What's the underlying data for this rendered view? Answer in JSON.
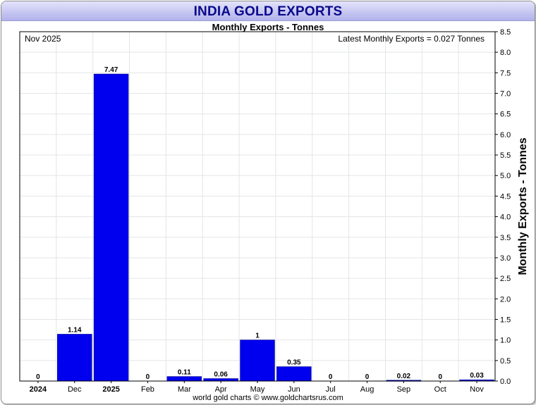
{
  "chart_data": {
    "type": "bar",
    "title": "INDIA GOLD EXPORTS",
    "subtitle": "Monthly Exports - Tonnes",
    "date_label": "Nov 2025",
    "latest_label": "Latest Monthly Exports = 0.027 Tonnes",
    "ylabel": "Monthly Exports - Tonnes",
    "ylim": [
      0,
      8.5
    ],
    "ytick_step": 0.5,
    "grid": true,
    "categories": [
      "2024",
      "Dec",
      "2025",
      "Feb",
      "Mar",
      "Apr",
      "May",
      "Jun",
      "Jul",
      "Aug",
      "Sep",
      "Oct",
      "Nov"
    ],
    "bold_categories": [
      "2024",
      "2025"
    ],
    "values": [
      0,
      1.14,
      7.47,
      0,
      0.11,
      0.06,
      1.0,
      0.35,
      0,
      0,
      0.02,
      0,
      0.03
    ],
    "value_labels": [
      "0",
      "1.14",
      "7.47",
      "0",
      "0.11",
      "0.06",
      "1",
      "0.35",
      "0",
      "0",
      "0.02",
      "0",
      "0.03"
    ],
    "bar_color": "#0000ee",
    "footer": "world gold charts © www.goldchartsrus.com"
  }
}
